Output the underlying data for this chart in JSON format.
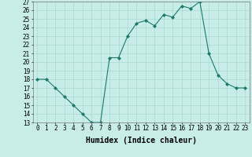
{
  "x": [
    0,
    1,
    2,
    3,
    4,
    5,
    6,
    7,
    8,
    9,
    10,
    11,
    12,
    13,
    14,
    15,
    16,
    17,
    18,
    19,
    20,
    21,
    22,
    23
  ],
  "y": [
    18,
    18,
    17,
    16,
    15,
    14,
    13,
    13,
    20.5,
    20.5,
    23,
    24.5,
    24.8,
    24.2,
    25.5,
    25.2,
    26.5,
    26.2,
    27,
    21,
    18.5,
    17.5,
    17,
    17
  ],
  "line_color": "#1a7a6a",
  "marker": "D",
  "marker_size": 2,
  "background_color": "#c8ece8",
  "grid_color": "#a8d8d0",
  "xlabel": "Humidex (Indice chaleur)",
  "ylim": [
    13,
    27
  ],
  "xlim": [
    -0.5,
    23.5
  ],
  "yticks": [
    13,
    14,
    15,
    16,
    17,
    18,
    19,
    20,
    21,
    22,
    23,
    24,
    25,
    26,
    27
  ],
  "xticks": [
    0,
    1,
    2,
    3,
    4,
    5,
    6,
    7,
    8,
    9,
    10,
    11,
    12,
    13,
    14,
    15,
    16,
    17,
    18,
    19,
    20,
    21,
    22,
    23
  ],
  "tick_fontsize": 5.5,
  "label_fontsize": 7
}
